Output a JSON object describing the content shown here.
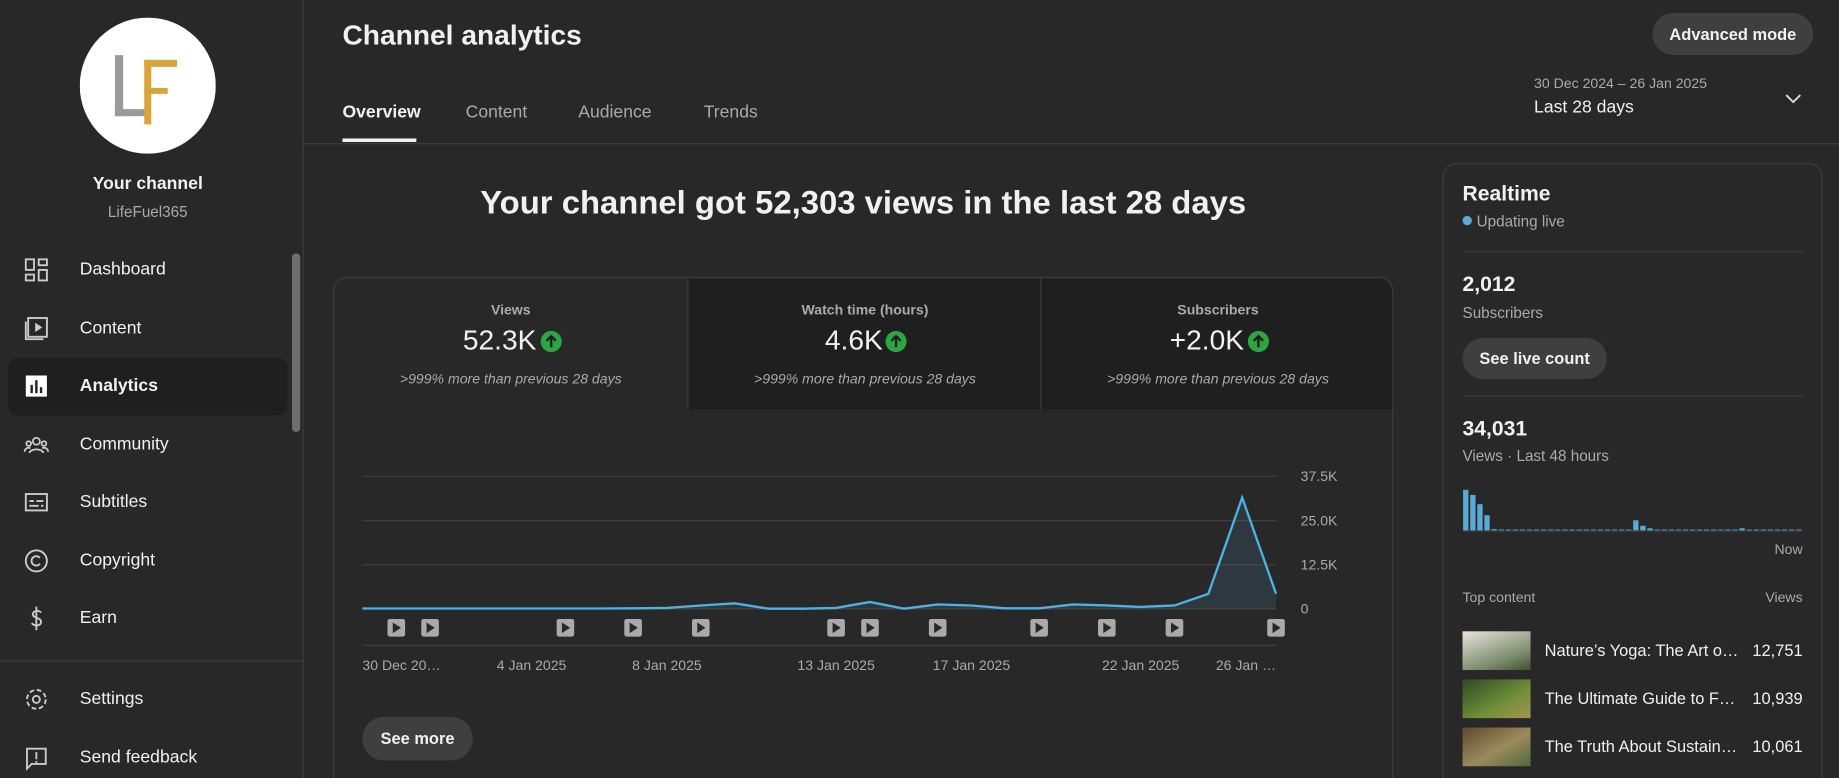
{
  "sidebar": {
    "channel_label": "Your channel",
    "channel_name": "LifeFuel365",
    "nav": [
      "Dashboard",
      "Content",
      "Analytics",
      "Community",
      "Subtitles",
      "Copyright",
      "Earn"
    ],
    "footer_nav": [
      "Settings",
      "Send feedback"
    ]
  },
  "header": {
    "title": "Channel analytics",
    "advanced_button": "Advanced mode",
    "tabs": [
      "Overview",
      "Content",
      "Audience",
      "Trends"
    ],
    "date_range": "30 Dec 2024 – 26 Jan 2025",
    "period": "Last 28 days"
  },
  "headline": "Your channel got 52,303 views in the last 28 days",
  "metrics": [
    {
      "label": "Views",
      "value": "52.3K",
      "change": ">999% more than previous 28 days"
    },
    {
      "label": "Watch time (hours)",
      "value": "4.6K",
      "change": ">999% more than previous 28 days"
    },
    {
      "label": "Subscribers",
      "value": "+2.0K",
      "change": ">999% more than previous 28 days"
    }
  ],
  "see_more": "See more",
  "chart_data": [
    {
      "type": "line",
      "color": "#4fb0e3",
      "categories": [
        "30 Dec 20…",
        null,
        null,
        null,
        null,
        "4 Jan 2025",
        null,
        null,
        null,
        "8 Jan 2025",
        null,
        null,
        null,
        null,
        "13 Jan 2025",
        null,
        null,
        null,
        "17 Jan 2025",
        null,
        null,
        null,
        null,
        "22 Jan 2025",
        null,
        null,
        null,
        "26 Jan …"
      ],
      "values": [
        150,
        150,
        150,
        150,
        150,
        150,
        150,
        150,
        200,
        300,
        1000,
        1600,
        100,
        100,
        300,
        2000,
        100,
        1300,
        1000,
        200,
        200,
        1300,
        1000,
        600,
        1000,
        4300,
        31500,
        4300
      ],
      "ylim": [
        0,
        37500
      ],
      "yticks": [
        0,
        {
          "value": 12500,
          "label": "12.5K"
        },
        {
          "value": 25000,
          "label": "25.0K"
        },
        {
          "value": 37500,
          "label": "37.5K"
        }
      ],
      "grid": true
    },
    {
      "type": "bar",
      "color": "#5aa9d6",
      "values": [
        9600,
        8400,
        6200,
        3600,
        300,
        200,
        200,
        200,
        200,
        200,
        200,
        200,
        200,
        200,
        200,
        200,
        200,
        200,
        200,
        200,
        200,
        200,
        200,
        200,
        2400,
        1100,
        500,
        200,
        200,
        200,
        200,
        200,
        200,
        200,
        200,
        200,
        200,
        200,
        200,
        500,
        200,
        200,
        200,
        200,
        200,
        200,
        200,
        200
      ],
      "ylim": [
        0,
        10000
      ]
    }
  ],
  "realtime": {
    "title": "Realtime",
    "status": "Updating live",
    "subscribers": "2,012",
    "subscribers_label": "Subscribers",
    "live_button": "See live count",
    "views": "34,031",
    "views_label": "Views · Last 48 hours",
    "now_label": "Now",
    "top_content_label": "Top content",
    "views_column": "Views",
    "top_content": [
      {
        "title": "Nature’s Yoga: The Art o…",
        "views": "12,751"
      },
      {
        "title": "The Ultimate Guide to F…",
        "views": "10,939"
      },
      {
        "title": "The Truth About Sustain…",
        "views": "10,061"
      }
    ]
  }
}
